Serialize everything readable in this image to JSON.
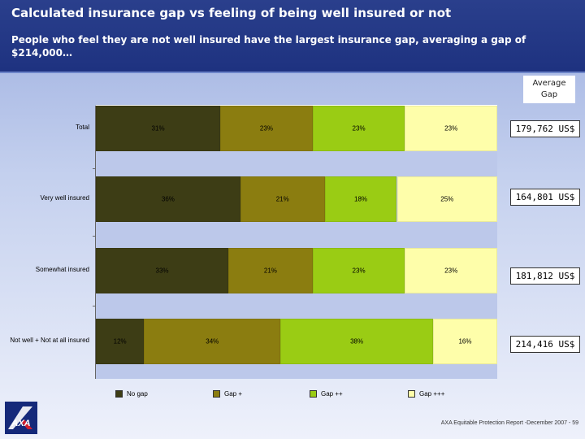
{
  "header": {
    "title": "Calculated insurance gap vs feeling of being well insured or not",
    "subtitle": "People who feel they are not well insured have the largest insurance gap, averaging a gap of $214,000…"
  },
  "average_gap": {
    "heading": "Average Gap",
    "values": [
      "179,762 US$",
      "164,801 US$",
      "181,812 US$",
      "214,416 US$"
    ]
  },
  "chart_data": {
    "type": "bar",
    "orientation": "horizontal",
    "stacked": true,
    "percent_stacked": true,
    "categories": [
      "Total",
      "Very well insured",
      "Somewhat insured",
      "Not well + Not at all insured"
    ],
    "series": [
      {
        "name": "No gap",
        "color": "#3d3d15",
        "values": [
          31,
          36,
          33,
          12
        ]
      },
      {
        "name": "Gap +",
        "color": "#8b7d10",
        "values": [
          23,
          21,
          21,
          34
        ]
      },
      {
        "name": "Gap ++",
        "color": "#9acc14",
        "values": [
          23,
          18,
          23,
          38
        ]
      },
      {
        "name": "Gap +++",
        "color": "#fefeaa",
        "values": [
          23,
          25,
          23,
          16
        ]
      }
    ],
    "value_labels": [
      [
        "31%",
        "23%",
        "23%",
        "23%"
      ],
      [
        "36%",
        "21%",
        "18%",
        "25%"
      ],
      [
        "33%",
        "21%",
        "23%",
        "23%"
      ],
      [
        "12%",
        "34%",
        "38%",
        "16%"
      ]
    ],
    "legend_position": "bottom",
    "grid": false
  },
  "logo": {
    "text": "AXA"
  },
  "footer": {
    "text": "AXA Equitable Protection Report -December 2007 - 59"
  }
}
